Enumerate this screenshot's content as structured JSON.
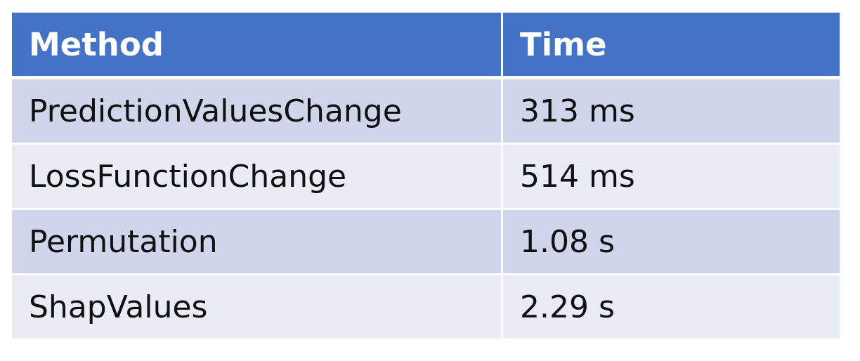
{
  "table": {
    "headers": {
      "method": "Method",
      "time": "Time"
    },
    "rows": [
      {
        "method": "PredictionValuesChange",
        "time": "313 ms"
      },
      {
        "method": "LossFunctionChange",
        "time": "514 ms"
      },
      {
        "method": "Permutation",
        "time": "1.08 s"
      },
      {
        "method": "ShapValues",
        "time": "2.29 s"
      }
    ],
    "colors": {
      "header_background": "#4472C4",
      "header_text": "#ffffff",
      "row_band_dark": "#CFD5EA",
      "row_band_light": "#E9EBF5"
    }
  }
}
